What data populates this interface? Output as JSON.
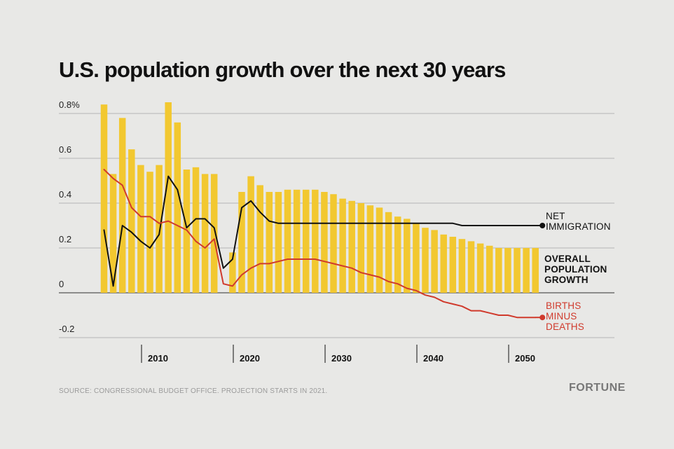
{
  "chart_data": {
    "type": "bar",
    "title": "U.S. population growth over the next 30 years",
    "source": "SOURCE: CONGRESSIONAL BUDGET OFFICE. PROJECTION STARTS IN 2021.",
    "brand": "FORTUNE",
    "x": [
      2005,
      2006,
      2007,
      2008,
      2009,
      2010,
      2011,
      2012,
      2013,
      2014,
      2015,
      2016,
      2017,
      2018,
      2019,
      2020,
      2021,
      2022,
      2023,
      2024,
      2025,
      2026,
      2027,
      2028,
      2029,
      2030,
      2031,
      2032,
      2033,
      2034,
      2035,
      2036,
      2037,
      2038,
      2039,
      2040,
      2041,
      2042,
      2043,
      2044,
      2045,
      2046,
      2047,
      2048,
      2049,
      2050,
      2051,
      2052
    ],
    "ylim": [
      -0.2,
      0.8
    ],
    "yticks": [
      {
        "value": 0.8,
        "label": "0.8%"
      },
      {
        "value": 0.6,
        "label": "0.6"
      },
      {
        "value": 0.4,
        "label": "0.4"
      },
      {
        "value": 0.2,
        "label": "0.2"
      },
      {
        "value": 0,
        "label": "0"
      },
      {
        "value": -0.2,
        "label": "-0.2"
      }
    ],
    "xticks": [
      {
        "value": 2010,
        "label": "2010"
      },
      {
        "value": 2020,
        "label": "2020"
      },
      {
        "value": 2030,
        "label": "2030"
      },
      {
        "value": 2040,
        "label": "2040"
      },
      {
        "value": 2050,
        "label": "2050"
      }
    ],
    "series": [
      {
        "name": "OVERALL POPULATION GROWTH",
        "type": "bar",
        "color": "#f2c830",
        "values": [
          0.84,
          0.53,
          0.78,
          0.64,
          0.57,
          0.54,
          0.57,
          0.85,
          0.76,
          0.55,
          0.56,
          0.53,
          0.53,
          0,
          0.18,
          0.45,
          0.52,
          0.48,
          0.45,
          0.45,
          0.46,
          0.46,
          0.46,
          0.46,
          0.45,
          0.44,
          0.42,
          0.41,
          0.4,
          0.39,
          0.38,
          0.36,
          0.34,
          0.33,
          0.31,
          0.29,
          0.28,
          0.26,
          0.25,
          0.24,
          0.23,
          0.22,
          0.21,
          0.2,
          0.2,
          0.2,
          0.2,
          0.2
        ]
      },
      {
        "name": "NET IMMIGRATION",
        "type": "line",
        "color": "#111111",
        "values": [
          0.28,
          0.03,
          0.3,
          0.27,
          0.23,
          0.2,
          0.26,
          0.52,
          0.46,
          0.29,
          0.33,
          0.33,
          0.29,
          0.11,
          0.15,
          0.38,
          0.41,
          0.36,
          0.32,
          0.31,
          0.31,
          0.31,
          0.31,
          0.31,
          0.31,
          0.31,
          0.31,
          0.31,
          0.31,
          0.31,
          0.31,
          0.31,
          0.31,
          0.31,
          0.31,
          0.31,
          0.31,
          0.31,
          0.31,
          0.3,
          0.3,
          0.3,
          0.3,
          0.3,
          0.3,
          0.3,
          0.3,
          0.3
        ]
      },
      {
        "name": "BIRTHS MINUS DEATHS",
        "type": "line",
        "color": "#d03a2c",
        "values": [
          0.55,
          0.51,
          0.48,
          0.38,
          0.34,
          0.34,
          0.31,
          0.32,
          0.3,
          0.28,
          0.23,
          0.2,
          0.24,
          0.04,
          0.03,
          0.08,
          0.11,
          0.13,
          0.13,
          0.14,
          0.15,
          0.15,
          0.15,
          0.15,
          0.14,
          0.13,
          0.12,
          0.11,
          0.09,
          0.08,
          0.07,
          0.05,
          0.04,
          0.02,
          0.01,
          -0.01,
          -0.02,
          -0.04,
          -0.05,
          -0.06,
          -0.08,
          -0.08,
          -0.09,
          -0.1,
          -0.1,
          -0.11,
          -0.11,
          -0.11
        ]
      }
    ],
    "labels": {
      "immigration": [
        "NET",
        "IMMIGRATION"
      ],
      "overall": [
        "OVERALL",
        "POPULATION",
        "GROWTH"
      ],
      "births": [
        "BIRTHS",
        "MINUS",
        "DEATHS"
      ]
    },
    "grid": true
  }
}
